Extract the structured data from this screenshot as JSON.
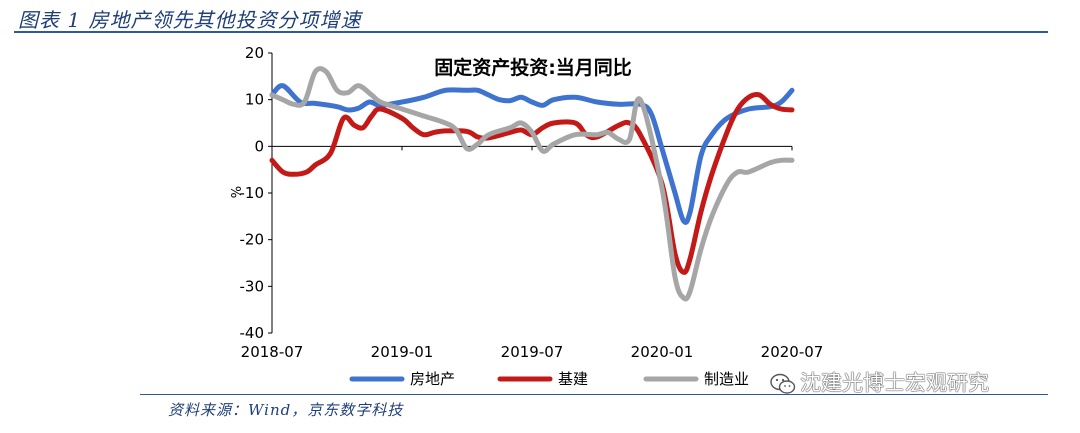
{
  "caption": "图表 1 房地产领先其他投资分项增速",
  "source": "资料来源：Wind，京东数字科技",
  "watermark": "沈建光博士宏观研究",
  "chart_data": {
    "type": "line",
    "title": "固定资产投资:当月同比",
    "ylabel": "%",
    "ylim": [
      -40,
      20
    ],
    "yticks": [
      20,
      10,
      0,
      -10,
      -20,
      -30,
      -40
    ],
    "x_range": [
      0,
      24
    ],
    "xticks": [
      {
        "pos": 0,
        "label": "2018-07"
      },
      {
        "pos": 6,
        "label": "2019-01"
      },
      {
        "pos": 12,
        "label": "2019-07"
      },
      {
        "pos": 18,
        "label": "2020-01"
      },
      {
        "pos": 24,
        "label": "2020-07"
      }
    ],
    "legend_position": "bottom",
    "series": [
      {
        "name": "房地产",
        "color": "#3f73d0",
        "points": [
          [
            0,
            11
          ],
          [
            0.5,
            13
          ],
          [
            1.3,
            9.5
          ],
          [
            2,
            9.2
          ],
          [
            3,
            8.5
          ],
          [
            3.5,
            7.8
          ],
          [
            4,
            8.2
          ],
          [
            4.5,
            9.5
          ],
          [
            5,
            8.8
          ],
          [
            6,
            9.5
          ],
          [
            7,
            10.5
          ],
          [
            8,
            12
          ],
          [
            9,
            12
          ],
          [
            9.5,
            12
          ],
          [
            10,
            11
          ],
          [
            10.5,
            10
          ],
          [
            11,
            9.8
          ],
          [
            11.5,
            10.5
          ],
          [
            12,
            9.5
          ],
          [
            12.5,
            8.8
          ],
          [
            13,
            10
          ],
          [
            14,
            10.5
          ],
          [
            15,
            9.5
          ],
          [
            16,
            9
          ],
          [
            17,
            9
          ],
          [
            17.5,
            7
          ],
          [
            18,
            -0.5
          ],
          [
            18.6,
            -10
          ],
          [
            19,
            -16
          ],
          [
            19.3,
            -14
          ],
          [
            19.8,
            -2
          ],
          [
            20.3,
            2.5
          ],
          [
            21,
            6
          ],
          [
            22,
            8
          ],
          [
            23,
            8.5
          ],
          [
            23.5,
            9.5
          ],
          [
            24,
            12
          ]
        ]
      },
      {
        "name": "基建",
        "color": "#c41a17",
        "points": [
          [
            0,
            -3
          ],
          [
            0.5,
            -5.5
          ],
          [
            1,
            -6
          ],
          [
            1.6,
            -5.5
          ],
          [
            2,
            -4
          ],
          [
            2.7,
            -1.5
          ],
          [
            3.3,
            6
          ],
          [
            3.8,
            4.5
          ],
          [
            4.2,
            4
          ],
          [
            4.6,
            6.5
          ],
          [
            5,
            8
          ],
          [
            6,
            6
          ],
          [
            6.5,
            4
          ],
          [
            7,
            2.5
          ],
          [
            7.5,
            3
          ],
          [
            8,
            3.3
          ],
          [
            9,
            3.2
          ],
          [
            9.5,
            2
          ],
          [
            10,
            1.8
          ],
          [
            11,
            3
          ],
          [
            11.5,
            3.5
          ],
          [
            12,
            2.5
          ],
          [
            12.5,
            4
          ],
          [
            13,
            5
          ],
          [
            14,
            5
          ],
          [
            14.5,
            2.5
          ],
          [
            15,
            2
          ],
          [
            16,
            4.5
          ],
          [
            16.5,
            5
          ],
          [
            17,
            2.5
          ],
          [
            18,
            -8
          ],
          [
            18.6,
            -23
          ],
          [
            19,
            -27
          ],
          [
            19.3,
            -24
          ],
          [
            19.8,
            -14
          ],
          [
            20.3,
            -6
          ],
          [
            21,
            3
          ],
          [
            21.5,
            8
          ],
          [
            22,
            10.5
          ],
          [
            22.5,
            11
          ],
          [
            23,
            9
          ],
          [
            23.5,
            8
          ],
          [
            24,
            7.8
          ]
        ]
      },
      {
        "name": "制造业",
        "color": "#a6a6a6",
        "points": [
          [
            0,
            11
          ],
          [
            0.5,
            10
          ],
          [
            1,
            9
          ],
          [
            1.5,
            9.5
          ],
          [
            2,
            16
          ],
          [
            2.5,
            16
          ],
          [
            3,
            12
          ],
          [
            3.5,
            11.5
          ],
          [
            4,
            13
          ],
          [
            4.6,
            11
          ],
          [
            5,
            9.5
          ],
          [
            6,
            8
          ],
          [
            7,
            6.5
          ],
          [
            8,
            5
          ],
          [
            8.5,
            3.5
          ],
          [
            9,
            -0.5
          ],
          [
            9.5,
            0.5
          ],
          [
            10,
            2.5
          ],
          [
            11,
            4
          ],
          [
            11.5,
            5
          ],
          [
            12,
            3
          ],
          [
            12.5,
            -1
          ],
          [
            13,
            0.5
          ],
          [
            14,
            2.5
          ],
          [
            15,
            2.5
          ],
          [
            15.5,
            3
          ],
          [
            16,
            1.5
          ],
          [
            16.5,
            1.5
          ],
          [
            17,
            10
          ],
          [
            18,
            -9
          ],
          [
            18.6,
            -28
          ],
          [
            19,
            -32.5
          ],
          [
            19.3,
            -31
          ],
          [
            19.8,
            -22
          ],
          [
            20.3,
            -15
          ],
          [
            21,
            -8
          ],
          [
            21.5,
            -5.5
          ],
          [
            22,
            -5.5
          ],
          [
            23,
            -3.5
          ],
          [
            23.5,
            -3
          ],
          [
            24,
            -3
          ]
        ]
      }
    ]
  }
}
